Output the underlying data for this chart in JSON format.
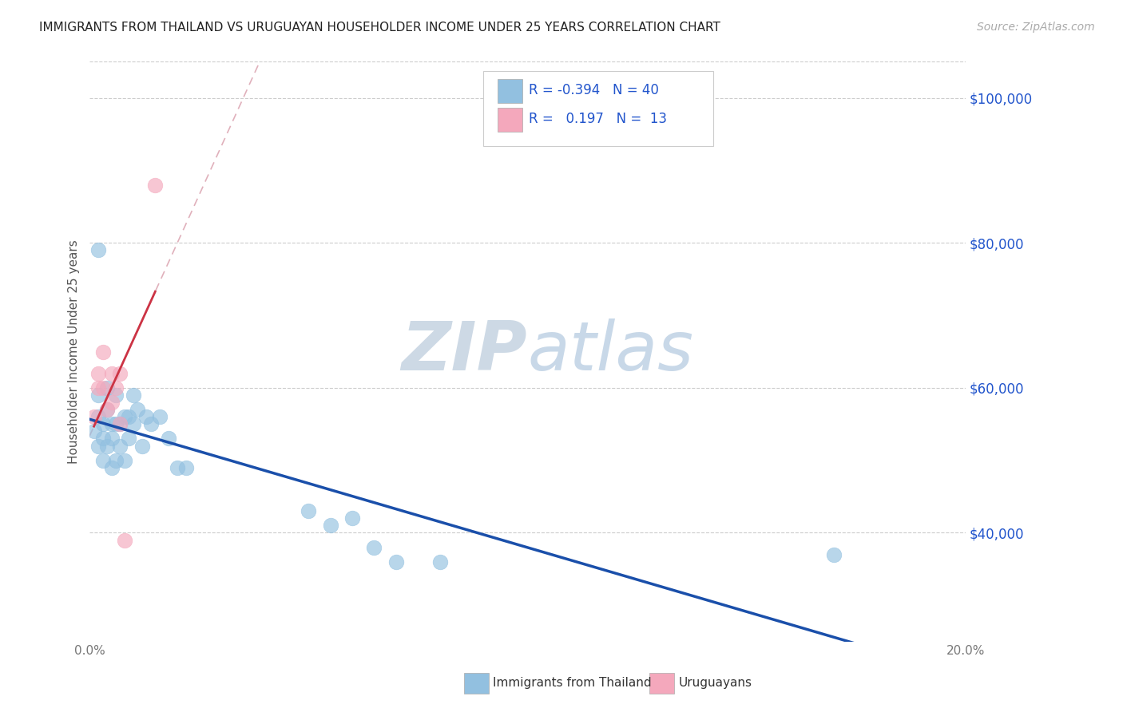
{
  "title": "IMMIGRANTS FROM THAILAND VS URUGUAYAN HOUSEHOLDER INCOME UNDER 25 YEARS CORRELATION CHART",
  "source": "Source: ZipAtlas.com",
  "ylabel": "Householder Income Under 25 years",
  "legend_label1": "Immigrants from Thailand",
  "legend_label2": "Uruguayans",
  "r1": "-0.394",
  "n1": "40",
  "r2": "0.197",
  "n2": "13",
  "xlim": [
    0.0,
    0.2
  ],
  "ylim": [
    25000,
    105000
  ],
  "yticks": [
    40000,
    60000,
    80000,
    100000
  ],
  "ytick_labels": [
    "$40,000",
    "$60,000",
    "$80,000",
    "$100,000"
  ],
  "xticks": [
    0.0,
    0.05,
    0.1,
    0.15,
    0.2
  ],
  "xtick_labels": [
    "0.0%",
    "",
    "",
    "",
    "20.0%"
  ],
  "background_color": "#ffffff",
  "grid_color": "#cccccc",
  "title_color": "#222222",
  "source_color": "#aaaaaa",
  "blue_color": "#92c0e0",
  "pink_color": "#f4a8bc",
  "trendline_blue": "#1a4faa",
  "trendline_pink": "#cc3344",
  "trendline_dashed_color": "#e0b0bb",
  "watermark_color": "#cdd9e5",
  "right_label_color": "#2255cc",
  "thailand_x": [
    0.001,
    0.002,
    0.002,
    0.002,
    0.003,
    0.003,
    0.003,
    0.004,
    0.004,
    0.004,
    0.005,
    0.005,
    0.005,
    0.006,
    0.006,
    0.006,
    0.007,
    0.007,
    0.008,
    0.008,
    0.009,
    0.009,
    0.01,
    0.01,
    0.011,
    0.012,
    0.013,
    0.014,
    0.016,
    0.018,
    0.02,
    0.022,
    0.05,
    0.055,
    0.06,
    0.065,
    0.07,
    0.08,
    0.17,
    0.002
  ],
  "thailand_y": [
    54000,
    56000,
    52000,
    59000,
    53000,
    55000,
    50000,
    57000,
    60000,
    52000,
    49000,
    53000,
    55000,
    50000,
    55000,
    59000,
    52000,
    55000,
    50000,
    56000,
    53000,
    56000,
    55000,
    59000,
    57000,
    52000,
    56000,
    55000,
    56000,
    53000,
    49000,
    49000,
    43000,
    41000,
    42000,
    38000,
    36000,
    36000,
    37000,
    79000
  ],
  "uruguayan_x": [
    0.001,
    0.002,
    0.002,
    0.003,
    0.003,
    0.004,
    0.005,
    0.005,
    0.006,
    0.007,
    0.007,
    0.008,
    0.015
  ],
  "uruguayan_y": [
    56000,
    62000,
    60000,
    65000,
    60000,
    57000,
    58000,
    62000,
    60000,
    62000,
    55000,
    39000,
    88000
  ],
  "dot_size": 180
}
